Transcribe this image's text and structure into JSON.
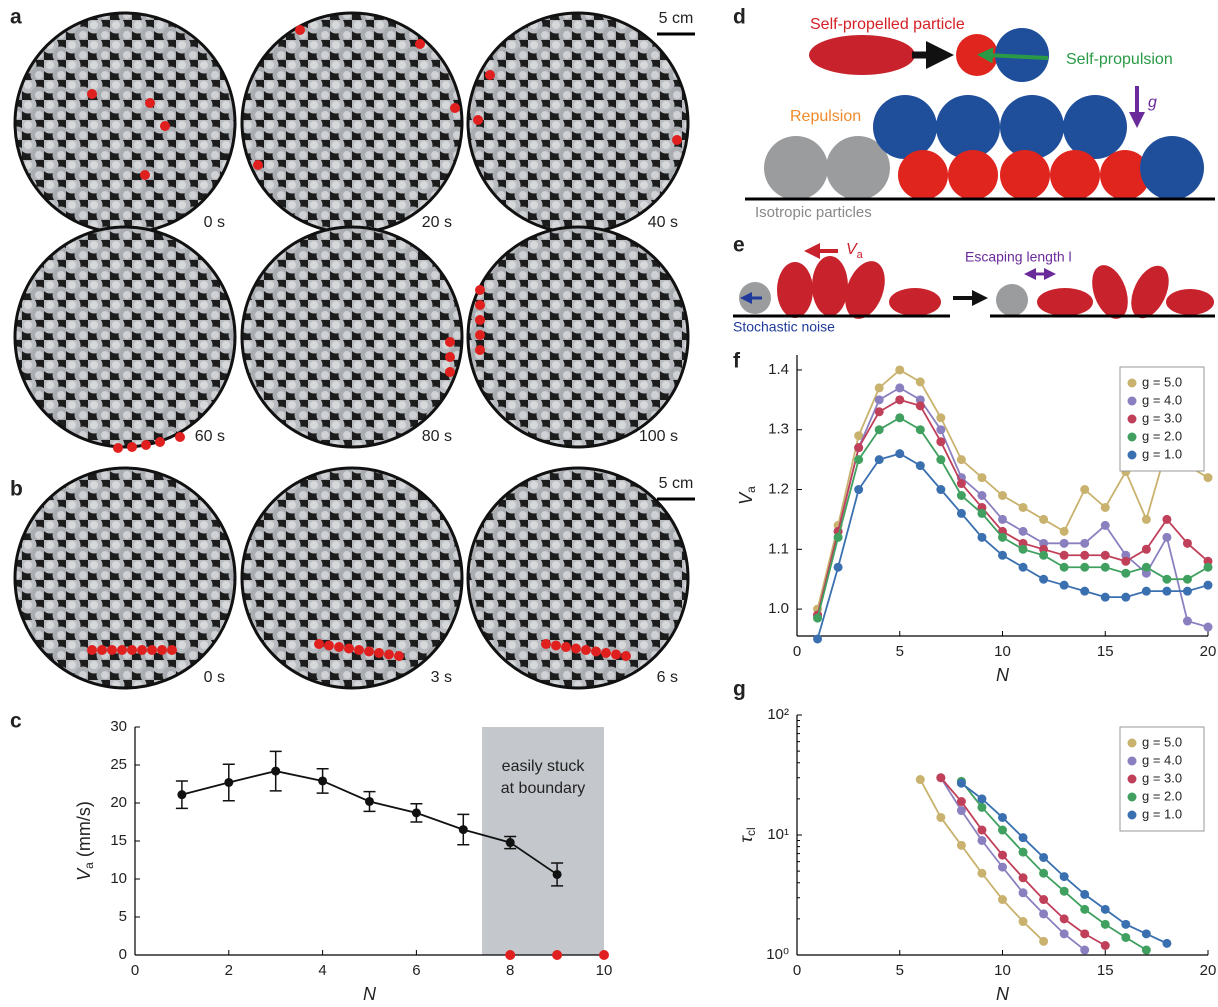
{
  "figure": {
    "panel_labels": [
      "a",
      "b",
      "c",
      "d",
      "e",
      "f",
      "g"
    ],
    "photos_a": {
      "times": [
        "0 s",
        "20 s",
        "40 s",
        "60 s",
        "80 s",
        "100 s"
      ],
      "scale": "5 cm"
    },
    "photos_b": {
      "times": [
        "0 s",
        "3 s",
        "6 s"
      ],
      "scale": "5 cm"
    },
    "diagram_d": {
      "particle": "Self-propelled particle",
      "propulsion": "Self-propulsion",
      "repulsion": "Repulsion",
      "gravity": "g",
      "isotropic": "Isotropic particles"
    },
    "diagram_e": {
      "speed": [
        "V",
        "a"
      ],
      "escape": "Escaping length l",
      "noise": "Stochastic noise"
    }
  },
  "chart_data": [
    {
      "type": "errorbar",
      "xlabel": "N",
      "ylabel": [
        "V",
        "a",
        " (mm/s)"
      ],
      "x": [
        1,
        2,
        3,
        4,
        5,
        6,
        7,
        8,
        9
      ],
      "values": [
        21.1,
        22.7,
        24.2,
        22.9,
        20.2,
        18.7,
        16.5,
        14.8,
        10.6
      ],
      "errors": [
        1.8,
        2.4,
        2.6,
        1.6,
        1.3,
        1.2,
        2.0,
        0.8,
        1.5
      ],
      "color": "#111111",
      "stuck": {
        "x": [
          8,
          9,
          10
        ],
        "values": [
          0,
          0,
          0
        ],
        "color": "#e0201e"
      },
      "shade": [
        7.4,
        10
      ],
      "shade_color": "#c4c8cc",
      "annotation": [
        "easily stuck",
        "at boundary"
      ],
      "xlim": [
        0,
        10
      ],
      "xticks": [
        0,
        2,
        4,
        6,
        8,
        10
      ],
      "ylim": [
        0,
        30
      ],
      "yticks": [
        0,
        5,
        10,
        15,
        20,
        25,
        30
      ]
    },
    {
      "type": "line",
      "xlabel": "N",
      "ylabel": [
        "V",
        "a"
      ],
      "legend": "upper right",
      "x": [
        1,
        2,
        3,
        4,
        5,
        6,
        7,
        8,
        9,
        10,
        11,
        12,
        13,
        14,
        15,
        16,
        17,
        18,
        19,
        20
      ],
      "series": [
        {
          "name": "g = 5.0",
          "color": "#c9b26e",
          "values": [
            1.0,
            1.14,
            1.29,
            1.37,
            1.4,
            1.38,
            1.32,
            1.25,
            1.22,
            1.19,
            1.17,
            1.15,
            1.13,
            1.2,
            1.17,
            1.23,
            1.15,
            1.27,
            1.24,
            1.22
          ]
        },
        {
          "name": "g = 4.0",
          "color": "#8a80c0",
          "values": [
            0.99,
            1.13,
            1.27,
            1.35,
            1.37,
            1.35,
            1.3,
            1.22,
            1.19,
            1.15,
            1.13,
            1.11,
            1.11,
            1.11,
            1.14,
            1.09,
            1.06,
            1.12,
            0.98,
            0.97
          ]
        },
        {
          "name": "g = 3.0",
          "color": "#c0405a",
          "values": [
            0.99,
            1.13,
            1.27,
            1.33,
            1.35,
            1.34,
            1.28,
            1.21,
            1.17,
            1.13,
            1.11,
            1.1,
            1.09,
            1.09,
            1.09,
            1.08,
            1.1,
            1.15,
            1.11,
            1.08
          ]
        },
        {
          "name": "g = 2.0",
          "color": "#40a060",
          "values": [
            0.985,
            1.12,
            1.25,
            1.3,
            1.32,
            1.3,
            1.25,
            1.19,
            1.16,
            1.12,
            1.1,
            1.09,
            1.07,
            1.07,
            1.07,
            1.06,
            1.07,
            1.05,
            1.05,
            1.07
          ]
        },
        {
          "name": "g = 1.0",
          "color": "#3a70b0",
          "values": [
            0.95,
            1.07,
            1.2,
            1.25,
            1.26,
            1.24,
            1.2,
            1.16,
            1.12,
            1.09,
            1.07,
            1.05,
            1.04,
            1.03,
            1.02,
            1.02,
            1.03,
            1.03,
            1.03,
            1.04
          ]
        }
      ],
      "xlim": [
        0,
        20
      ],
      "xticks": [
        0,
        5,
        10,
        15,
        20
      ],
      "ylim": [
        0.955,
        1.425
      ],
      "yticks": [
        {
          "value": 1,
          "label": "1.0"
        },
        1.1,
        1.2,
        1.3,
        1.4
      ]
    },
    {
      "type": "line",
      "log_y": true,
      "xlabel": "N",
      "ylabel": [
        "τ",
        "cl"
      ],
      "legend": "upper right",
      "series": [
        {
          "name": "g = 5.0",
          "color": "#c9b26e",
          "x": [
            6,
            7,
            8,
            9,
            10,
            11,
            12
          ],
          "values": [
            29,
            14,
            8.2,
            4.8,
            2.9,
            1.9,
            1.3
          ]
        },
        {
          "name": "g = 4.0",
          "color": "#8a80c0",
          "x": [
            7,
            8,
            9,
            10,
            11,
            12,
            13,
            14
          ],
          "values": [
            30,
            16,
            9.0,
            5.4,
            3.3,
            2.2,
            1.5,
            1.1
          ]
        },
        {
          "name": "g = 3.0",
          "color": "#c0405a",
          "x": [
            7,
            8,
            9,
            10,
            11,
            12,
            13,
            14,
            15
          ],
          "values": [
            30,
            19,
            11,
            6.8,
            4.4,
            2.9,
            2.0,
            1.5,
            1.2
          ]
        },
        {
          "name": "g = 2.0",
          "color": "#40a060",
          "x": [
            8,
            9,
            10,
            11,
            12,
            13,
            14,
            15,
            16,
            17
          ],
          "values": [
            28,
            17,
            11,
            7.2,
            4.8,
            3.4,
            2.4,
            1.8,
            1.4,
            1.1
          ]
        },
        {
          "name": "g = 1.0",
          "color": "#3a70b0",
          "x": [
            8,
            9,
            10,
            11,
            12,
            13,
            14,
            15,
            16,
            17,
            18
          ],
          "values": [
            27,
            20,
            14,
            9.5,
            6.5,
            4.5,
            3.2,
            2.4,
            1.8,
            1.5,
            1.25
          ]
        }
      ],
      "xlim": [
        0,
        20
      ],
      "xticks": [
        0,
        5,
        10,
        15,
        20
      ],
      "ylim": [
        1,
        100
      ],
      "yticks": [
        {
          "value": 1,
          "label": "10⁰"
        },
        {
          "value": 10,
          "label": "10¹"
        },
        {
          "value": 100,
          "label": "10²"
        }
      ]
    }
  ]
}
